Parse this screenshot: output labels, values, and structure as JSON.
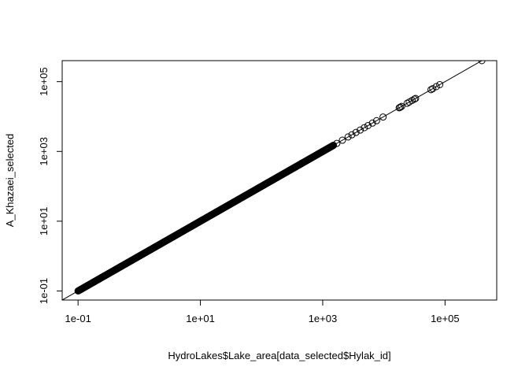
{
  "chart_data": {
    "type": "scatter",
    "xlabel": "HydroLakes$Lake_area[data_selected$Hylak_id]",
    "ylabel": "A_Khazaei_selected",
    "x_scale": "log",
    "y_scale": "log",
    "xlim": [
      0.055,
      700000
    ],
    "ylim": [
      0.055,
      400000
    ],
    "x_ticks": [
      0.1,
      10,
      1000,
      100000
    ],
    "x_tick_labels": [
      "1e-01",
      "1e+01",
      "1e+03",
      "1e+05"
    ],
    "y_ticks": [
      0.1,
      10,
      1000,
      100000
    ],
    "y_tick_labels": [
      "1e-01",
      "1e+01",
      "1e+03",
      "1e+05"
    ],
    "marker": "open-circle",
    "grid": false,
    "reference_line": "y = x",
    "series": [
      {
        "dense_range": [
          0.1,
          1500
        ],
        "x": [
          1700,
          2100,
          2600,
          3000,
          3500,
          4100,
          4800,
          5500,
          6500,
          7600,
          9700,
          17800,
          18500,
          19500,
          24000,
          26000,
          29000,
          31500,
          33000,
          59000,
          63000,
          72000,
          82000,
          400000
        ],
        "y": [
          1700,
          2100,
          2600,
          3000,
          3500,
          4100,
          4800,
          5500,
          6500,
          7600,
          9700,
          17800,
          18500,
          19500,
          24000,
          26000,
          29000,
          31500,
          33000,
          59000,
          63000,
          72000,
          82000,
          400000
        ]
      }
    ]
  },
  "colors": {
    "ink": "#000000",
    "background": "#ffffff"
  }
}
